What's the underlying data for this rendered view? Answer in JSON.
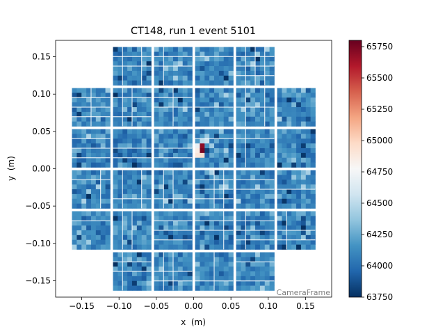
{
  "chart_data": {
    "type": "heatmap",
    "title": "CT148, run 1 event 5101",
    "xlabel": "x  (m)",
    "ylabel": "y  (m)",
    "xlim": [
      -0.185,
      0.185
    ],
    "ylim": [
      -0.172,
      0.172
    ],
    "xticks": [
      -0.15,
      -0.1,
      -0.05,
      0.0,
      0.05,
      0.1,
      0.15
    ],
    "xtick_labels": [
      "−0.15",
      "−0.10",
      "−0.05",
      "0.00",
      "0.05",
      "0.10",
      "0.15"
    ],
    "yticks": [
      0.15,
      0.1,
      0.05,
      0.0,
      -0.05,
      -0.1,
      -0.15
    ],
    "ytick_labels": [
      "0.15",
      "0.10",
      "0.05",
      "0.00",
      "−0.05",
      "−0.10",
      "−0.15"
    ],
    "frame_label": "CameraFrame",
    "colorbar": {
      "min": 63750,
      "max": 65800,
      "ticks": [
        63750,
        64000,
        64250,
        64500,
        64750,
        65000,
        65250,
        65500,
        65750
      ],
      "tick_labels": [
        "63750",
        "64000",
        "64250",
        "64500",
        "64750",
        "65000",
        "65250",
        "65500",
        "65750"
      ],
      "colormap": "RdBu_r",
      "stops": [
        "#053061",
        "#2166ac",
        "#4393c3",
        "#92c5de",
        "#d1e5f0",
        "#f7f7f7",
        "#fddbc7",
        "#f4a582",
        "#d6604d",
        "#b2182b",
        "#67001f"
      ]
    },
    "camera": {
      "modules_x": [
        -0.1375,
        -0.0825,
        -0.0275,
        0.0275,
        0.0825,
        0.1375
      ],
      "modules_y": [
        0.1375,
        0.0825,
        0.0275,
        -0.0275,
        -0.0825,
        -0.1375
      ],
      "module_size": 0.0512,
      "pixels_per_module": 8,
      "missing_corner_modules": [
        [
          0,
          0
        ],
        [
          5,
          0
        ],
        [
          0,
          5
        ],
        [
          5,
          5
        ]
      ],
      "baseline_mean": 64100,
      "baseline_spread": 140,
      "hot_pixels": [
        {
          "x": 0.0125,
          "y": 0.027,
          "value": 65750
        },
        {
          "x": 0.0125,
          "y": 0.033,
          "value": 65700
        },
        {
          "x": 0.0065,
          "y": 0.033,
          "value": 64700
        },
        {
          "x": 0.0065,
          "y": 0.027,
          "value": 64850
        },
        {
          "x": 0.0185,
          "y": 0.039,
          "value": 64550
        },
        {
          "x": 0.0125,
          "y": 0.039,
          "value": 64500
        },
        {
          "x": 0.0065,
          "y": 0.021,
          "value": 64900
        },
        {
          "x": 0.0125,
          "y": 0.021,
          "value": 64950
        },
        {
          "x": 0.0185,
          "y": 0.045,
          "value": 64400
        }
      ]
    }
  }
}
